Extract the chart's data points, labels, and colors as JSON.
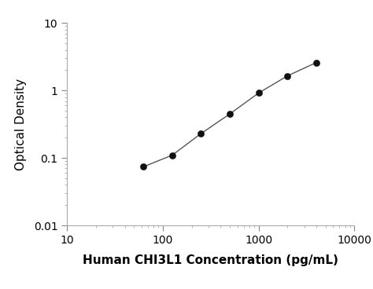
{
  "x": [
    62.5,
    125,
    250,
    500,
    1000,
    2000,
    4000
  ],
  "y": [
    0.074,
    0.11,
    0.23,
    0.45,
    0.92,
    1.65,
    2.6
  ],
  "xlim": [
    10,
    10000
  ],
  "ylim": [
    0.01,
    10
  ],
  "xlabel": "Human CHI3L1 Concentration (pg/mL)",
  "ylabel": "Optical Density",
  "xlabel_fontsize": 11,
  "ylabel_fontsize": 11,
  "tick_fontsize": 10,
  "line_color": "#555555",
  "marker_color": "#111111",
  "marker_size": 6,
  "line_width": 1.0,
  "background_color": "#ffffff",
  "spine_color": "#aaaaaa",
  "xticks_major": [
    10,
    100,
    1000,
    10000
  ],
  "yticks_major": [
    0.01,
    0.1,
    1,
    10
  ]
}
